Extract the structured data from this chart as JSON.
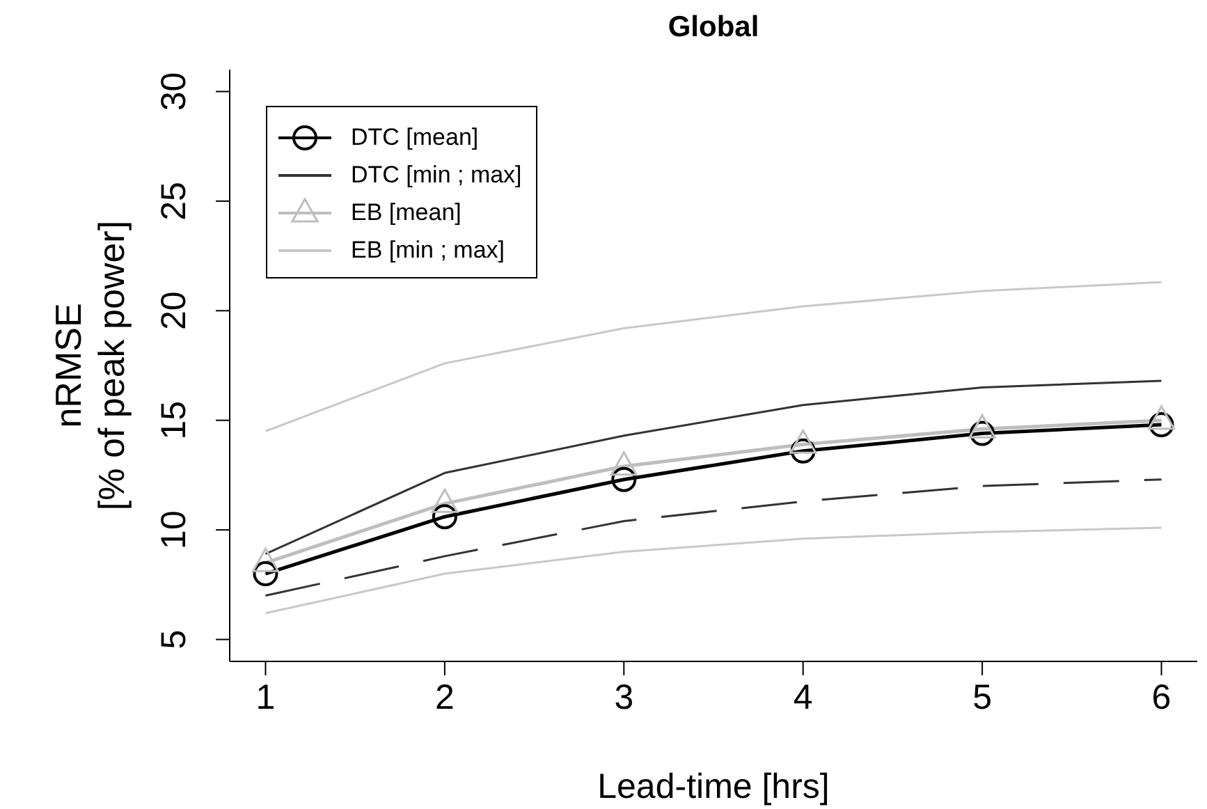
{
  "chart_data": {
    "type": "line",
    "title": "Global",
    "xlabel": "Lead-time [hrs]",
    "ylabel": "nRMSE\n[% of peak power]",
    "x": [
      1,
      2,
      3,
      4,
      5,
      6
    ],
    "xlim": [
      0.8,
      6.2
    ],
    "xticks": [
      1,
      2,
      3,
      4,
      5,
      6
    ],
    "ylim": [
      4,
      31
    ],
    "yticks": [
      5,
      10,
      15,
      20,
      25,
      30
    ],
    "grid": false,
    "legend": "top left",
    "series": [
      {
        "name": "DTC [mean]",
        "color": "#000000",
        "marker": "circle",
        "line_style": "solid",
        "values": [
          8.0,
          10.6,
          12.3,
          13.6,
          14.4,
          14.8
        ]
      },
      {
        "name": "DTC [min ; max]",
        "color": "#333333",
        "marker": "none",
        "line_style": "solid",
        "values": [
          8.9,
          12.6,
          14.3,
          15.7,
          16.5,
          16.8
        ]
      },
      {
        "color": "#333333",
        "marker": "none",
        "line_style": "dashed",
        "values": [
          7.0,
          8.8,
          10.4,
          11.3,
          12.0,
          12.3
        ]
      },
      {
        "name": "EB [mean]",
        "color": "#bebebe",
        "marker": "triangle",
        "line_style": "solid",
        "values": [
          8.5,
          11.2,
          12.9,
          13.9,
          14.6,
          15.0
        ]
      },
      {
        "name": "EB [min ; max]",
        "color": "#c8c8c8",
        "marker": "none",
        "line_style": "solid",
        "values": [
          14.5,
          17.6,
          19.2,
          20.2,
          20.9,
          21.3
        ]
      },
      {
        "color": "#c8c8c8",
        "marker": "none",
        "line_style": "solid",
        "values": [
          6.2,
          8.0,
          9.0,
          9.6,
          9.9,
          10.1
        ]
      }
    ]
  }
}
